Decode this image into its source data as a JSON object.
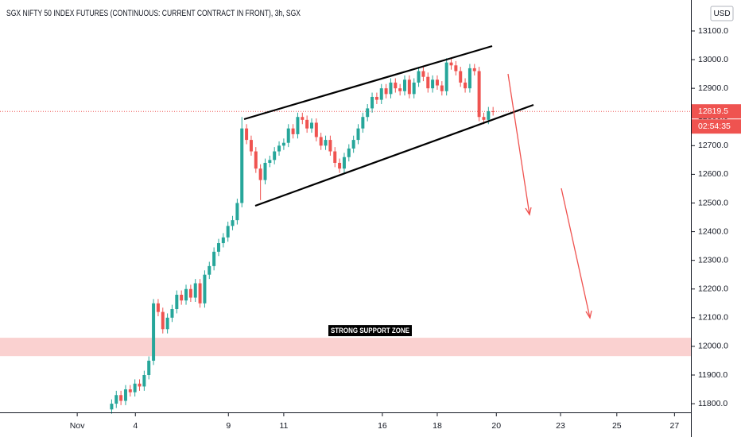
{
  "chart_data": {
    "type": "candlestick",
    "title": "SGX NIFTY 50 INDEX FUTURES (CONTINUOUS: CURRENT CONTRACT IN FRONT), 3h, SGX",
    "currency": "USD",
    "countdown": "02:54:35",
    "up_color": "#26a69a",
    "down_color": "#ef5350",
    "ylim": [
      11767,
      13208
    ],
    "yticks": [
      {
        "value": 11800,
        "label": "11800.0"
      },
      {
        "value": 11900,
        "label": "11900.0"
      },
      {
        "value": 12000,
        "label": "12000.0"
      },
      {
        "value": 12100,
        "label": "12100.0"
      },
      {
        "value": 12200,
        "label": "12200.0"
      },
      {
        "value": 12300,
        "label": "12300.0"
      },
      {
        "value": 12400,
        "label": "12400.0"
      },
      {
        "value": 12500,
        "label": "12500.0"
      },
      {
        "value": 12600,
        "label": "12600.0"
      },
      {
        "value": 12700,
        "label": "12700.0"
      },
      {
        "value": 12800,
        "label": "12800.0"
      },
      {
        "value": 12900,
        "label": "12900.0"
      },
      {
        "value": 13000,
        "label": "13000.0"
      },
      {
        "value": 13100,
        "label": "13100.0"
      }
    ],
    "xlim": [
      0,
      148.7
    ],
    "xticks": [
      {
        "value": 16.6,
        "label": "Nov"
      },
      {
        "value": 29.1,
        "label": "4"
      },
      {
        "value": 49.1,
        "label": "9"
      },
      {
        "value": 61.0,
        "label": "11"
      },
      {
        "value": 82.2,
        "label": "16"
      },
      {
        "value": 94.0,
        "label": "18"
      },
      {
        "value": 106.7,
        "label": "20"
      },
      {
        "value": 120.5,
        "label": "23"
      },
      {
        "value": 132.6,
        "label": "25"
      },
      {
        "value": 145.0,
        "label": "27"
      }
    ],
    "support_zone": {
      "label": "STRONG SUPPORT ZONE",
      "range": [
        11966,
        12030
      ]
    },
    "x": [
      24,
      25,
      26,
      27,
      28,
      29,
      30,
      31,
      32,
      33,
      34,
      35,
      36,
      37,
      38,
      39,
      40,
      41,
      42,
      43,
      44,
      45,
      46,
      47,
      48,
      49,
      50,
      51,
      52,
      53,
      54,
      55,
      56,
      57,
      58,
      59,
      60,
      61,
      62,
      63,
      64,
      65,
      66,
      67,
      68,
      69,
      70,
      71,
      72,
      73,
      74,
      75,
      76,
      77,
      78,
      79,
      80,
      81,
      82,
      83,
      84,
      85,
      86,
      87,
      88,
      89,
      90,
      91,
      92,
      93,
      94,
      95,
      96,
      97,
      98,
      99,
      100,
      101,
      102,
      103,
      104,
      105,
      106
    ],
    "open": [
      11780,
      11800,
      11830,
      11810,
      11850,
      11840,
      11870,
      11860,
      11900,
      11950,
      12150,
      12120,
      12060,
      12100,
      12130,
      12180,
      12160,
      12200,
      12170,
      12220,
      12150,
      12250,
      12280,
      12330,
      12360,
      12380,
      12420,
      12440,
      12500,
      12760,
      12720,
      12680,
      12620,
      12580,
      12640,
      12650,
      12680,
      12700,
      12710,
      12760,
      12740,
      12800,
      12790,
      12760,
      12780,
      12730,
      12700,
      12720,
      12680,
      12640,
      12620,
      12660,
      12690,
      12720,
      12760,
      12800,
      12830,
      12870,
      12860,
      12900,
      12880,
      12920,
      12900,
      12890,
      12930,
      12880,
      12920,
      12960,
      12940,
      12900,
      12930,
      12910,
      12890,
      12990,
      12980,
      12960,
      12920,
      12900,
      12970,
      12960,
      12800,
      12790,
      12820
    ],
    "high": [
      11815,
      11845,
      11845,
      11865,
      11865,
      11885,
      11885,
      11915,
      11965,
      12165,
      12165,
      12135,
      12115,
      12145,
      12195,
      12195,
      12215,
      12215,
      12235,
      12235,
      12265,
      12295,
      12345,
      12375,
      12395,
      12435,
      12455,
      12515,
      12800,
      12775,
      12735,
      12695,
      12635,
      12655,
      12665,
      12695,
      12715,
      12725,
      12775,
      12775,
      12815,
      12815,
      12805,
      12795,
      12795,
      12745,
      12735,
      12735,
      12695,
      12655,
      12675,
      12705,
      12735,
      12775,
      12815,
      12845,
      12885,
      12885,
      12915,
      12915,
      12935,
      12935,
      12915,
      12945,
      12945,
      12935,
      12975,
      12975,
      12955,
      12945,
      12945,
      12925,
      13005,
      13005,
      12995,
      12975,
      12935,
      12985,
      12985,
      12975,
      12815,
      12835,
      12835
    ],
    "low": [
      11765,
      11785,
      11795,
      11795,
      11825,
      11825,
      11845,
      11845,
      11885,
      11935,
      12105,
      12045,
      12045,
      12085,
      12115,
      12145,
      12145,
      12155,
      12155,
      12135,
      12135,
      12235,
      12265,
      12315,
      12345,
      12365,
      12405,
      12425,
      12485,
      12705,
      12665,
      12605,
      12510,
      12565,
      12625,
      12635,
      12665,
      12685,
      12695,
      12725,
      12725,
      12775,
      12745,
      12745,
      12715,
      12685,
      12685,
      12665,
      12625,
      12605,
      12605,
      12645,
      12675,
      12705,
      12745,
      12785,
      12815,
      12845,
      12845,
      12865,
      12865,
      12885,
      12875,
      12875,
      12865,
      12865,
      12905,
      12925,
      12885,
      12885,
      12895,
      12875,
      12875,
      12965,
      12945,
      12905,
      12885,
      12885,
      12945,
      12785,
      12775,
      12775,
      12805
    ],
    "close": [
      11800,
      11830,
      11810,
      11850,
      11840,
      11870,
      11860,
      11900,
      11950,
      12150,
      12120,
      12060,
      12100,
      12130,
      12180,
      12160,
      12200,
      12170,
      12220,
      12150,
      12250,
      12280,
      12330,
      12360,
      12380,
      12420,
      12440,
      12500,
      12760,
      12720,
      12680,
      12620,
      12580,
      12640,
      12650,
      12680,
      12700,
      12710,
      12760,
      12740,
      12800,
      12790,
      12760,
      12780,
      12730,
      12700,
      12720,
      12680,
      12640,
      12620,
      12660,
      12690,
      12720,
      12760,
      12800,
      12830,
      12870,
      12860,
      12900,
      12880,
      12920,
      12900,
      12890,
      12930,
      12880,
      12920,
      12960,
      12940,
      12900,
      12930,
      12910,
      12890,
      12990,
      12980,
      12960,
      12920,
      12900,
      12970,
      12960,
      12800,
      12790,
      12820,
      12819.5
    ]
  }
}
